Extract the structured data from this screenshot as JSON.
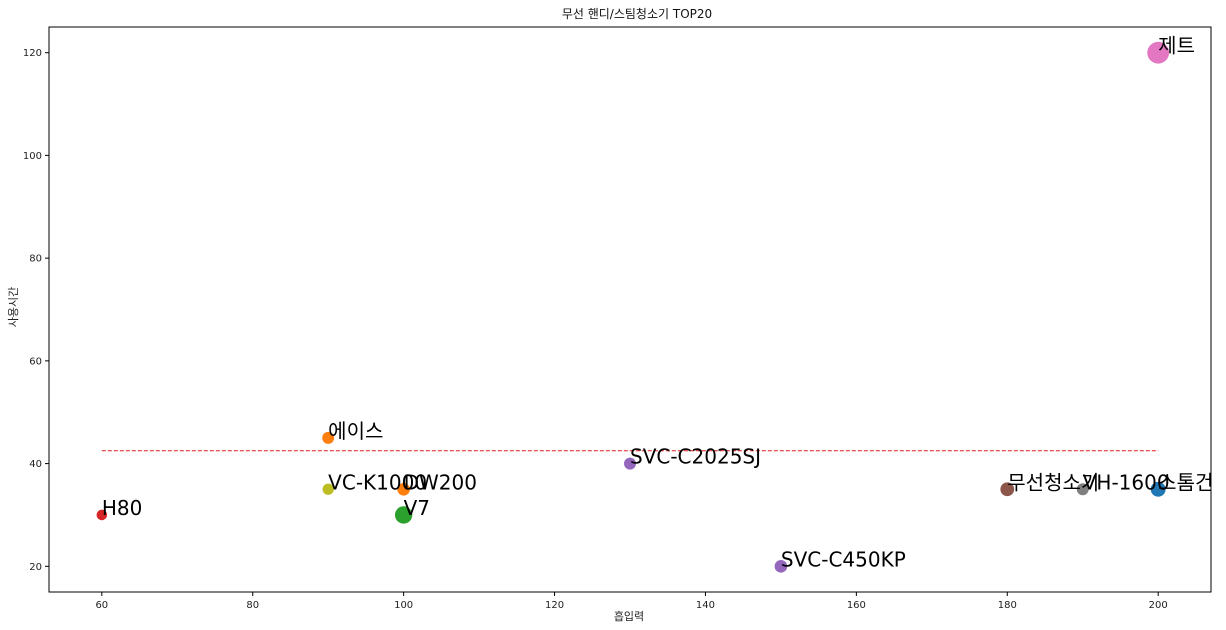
{
  "chart_data": {
    "type": "scatter",
    "title": "무선 핸디/스팀청소기 TOP20",
    "xlabel": "흡입력",
    "ylabel": "사용시간",
    "xlim": [
      53,
      207
    ],
    "ylim": [
      15,
      125
    ],
    "xticks": [
      60,
      80,
      100,
      120,
      140,
      160,
      180,
      200
    ],
    "yticks": [
      20,
      40,
      60,
      80,
      100,
      120
    ],
    "grid": false,
    "points": [
      {
        "label": "제트",
        "x": 200,
        "y": 120,
        "color": "#e377c2",
        "size": 3
      },
      {
        "label": "스톰건",
        "x": 200,
        "y": 35,
        "color": "#1f77b4",
        "size": 1.4
      },
      {
        "label": "VH-1600",
        "x": 190,
        "y": 35,
        "color": "#7f7f7f",
        "size": 0.9
      },
      {
        "label": "무선청소기",
        "x": 180,
        "y": 35,
        "color": "#8c564b",
        "size": 1.2
      },
      {
        "label": "SVC-C2025SJ",
        "x": 130,
        "y": 40,
        "color": "#9467bd",
        "size": 0.9
      },
      {
        "label": "SVC-C450KP",
        "x": 150,
        "y": 20,
        "color": "#9467bd",
        "size": 1.0
      },
      {
        "label": "에이스",
        "x": 90,
        "y": 45,
        "color": "#ff7f0e",
        "size": 0.9
      },
      {
        "label": "VC-K1000",
        "x": 90,
        "y": 35,
        "color": "#bcbd22",
        "size": 0.8
      },
      {
        "label": "DW200",
        "x": 100,
        "y": 35,
        "color": "#ff7f0e",
        "size": 1.0
      },
      {
        "label": "V7",
        "x": 100,
        "y": 30,
        "color": "#2ca02c",
        "size": 1.9
      },
      {
        "label": "H80",
        "x": 60,
        "y": 30,
        "color": "#d62728",
        "size": 0.7
      }
    ],
    "reference_line": {
      "y": 42.5,
      "x_range": [
        60,
        200
      ],
      "color": "#e31a1c",
      "style": "dashed"
    }
  }
}
